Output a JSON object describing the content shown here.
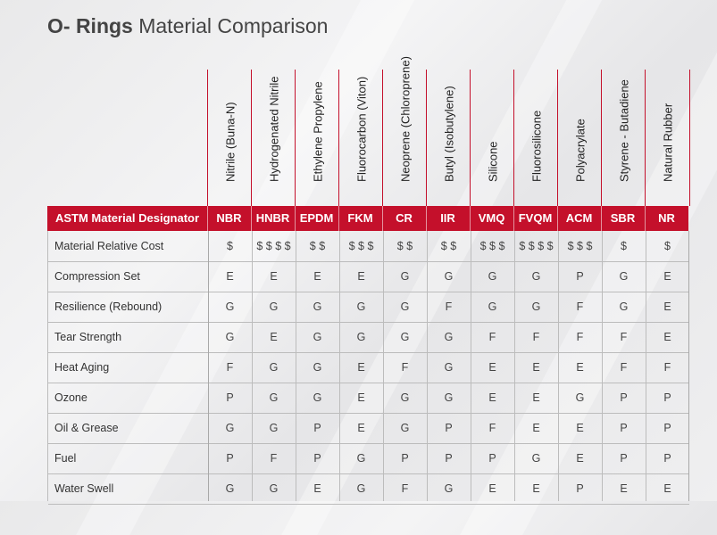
{
  "title": {
    "bold": "O- Rings",
    "rest": "Material Comparison"
  },
  "designator_label": "ASTM Material Designator",
  "materials": [
    {
      "name": "Nitrile (Buna-N)",
      "code": "NBR"
    },
    {
      "name": "Hydrogenated Nitrile",
      "code": "HNBR"
    },
    {
      "name": "Ethylene Propylene",
      "code": "EPDM"
    },
    {
      "name": "Fluorocarbon (Viton)",
      "code": "FKM"
    },
    {
      "name": "Neoprene (Chloroprene)",
      "code": "CR"
    },
    {
      "name": "Butyl (Isobutylene)",
      "code": "IIR"
    },
    {
      "name": "Silicone",
      "code": "VMQ"
    },
    {
      "name": "Fluorosilicone",
      "code": "FVQM"
    },
    {
      "name": "Polyacrylate",
      "code": "ACM"
    },
    {
      "name": "Styrene - Butadiene",
      "code": "SBR"
    },
    {
      "name": "Natural Rubber",
      "code": "NR"
    }
  ],
  "rows": [
    {
      "label": "Material Relative Cost",
      "values": [
        "$",
        "$ $ $ $",
        "$ $",
        "$ $ $",
        "$ $",
        "$ $",
        "$ $ $",
        "$ $ $ $",
        "$ $ $",
        "$",
        "$"
      ]
    },
    {
      "label": "Compression Set",
      "values": [
        "E",
        "E",
        "E",
        "E",
        "G",
        "G",
        "G",
        "G",
        "P",
        "G",
        "E"
      ]
    },
    {
      "label": "Resilience (Rebound)",
      "values": [
        "G",
        "G",
        "G",
        "G",
        "G",
        "F",
        "G",
        "G",
        "F",
        "G",
        "E"
      ]
    },
    {
      "label": "Tear Strength",
      "values": [
        "G",
        "E",
        "G",
        "G",
        "G",
        "G",
        "F",
        "F",
        "F",
        "F",
        "E"
      ]
    },
    {
      "label": "Heat Aging",
      "values": [
        "F",
        "G",
        "G",
        "E",
        "F",
        "G",
        "E",
        "E",
        "E",
        "F",
        "F"
      ]
    },
    {
      "label": "Ozone",
      "values": [
        "P",
        "G",
        "G",
        "E",
        "G",
        "G",
        "E",
        "E",
        "G",
        "P",
        "P"
      ]
    },
    {
      "label": "Oil & Grease",
      "values": [
        "G",
        "G",
        "P",
        "E",
        "G",
        "P",
        "F",
        "E",
        "E",
        "P",
        "P"
      ]
    },
    {
      "label": "Fuel",
      "values": [
        "P",
        "F",
        "P",
        "G",
        "P",
        "P",
        "P",
        "G",
        "E",
        "P",
        "P"
      ]
    },
    {
      "label": "Water Swell",
      "values": [
        "G",
        "G",
        "E",
        "G",
        "F",
        "G",
        "E",
        "E",
        "P",
        "E",
        "E"
      ]
    }
  ],
  "colors": {
    "accent": "#c4102b",
    "grid": "#bcbcbc",
    "background": "#ececed"
  }
}
